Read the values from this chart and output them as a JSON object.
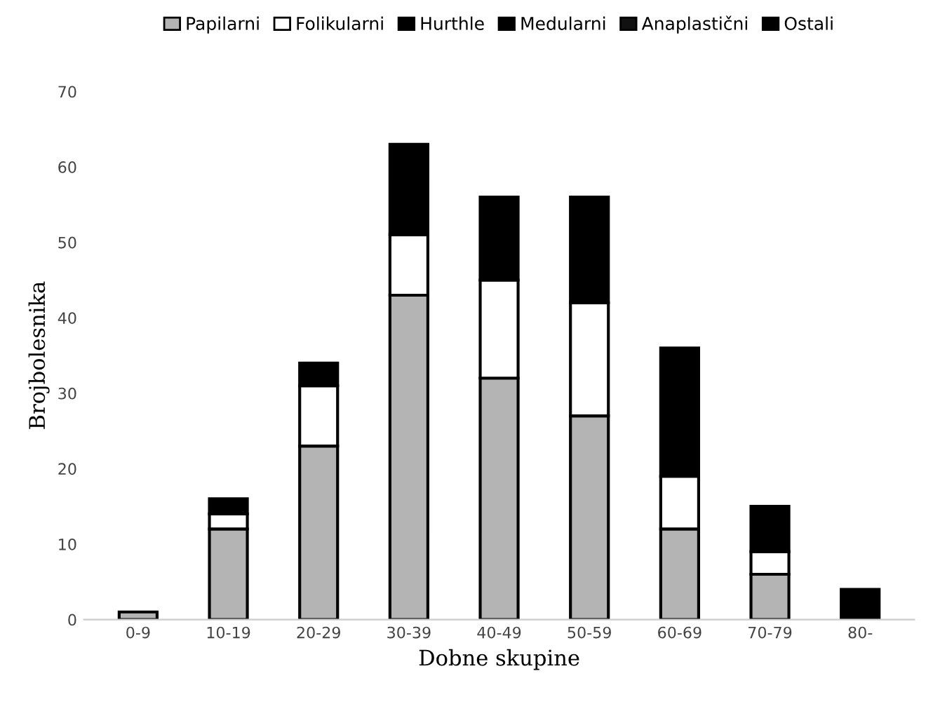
{
  "chart_data": {
    "type": "bar",
    "stacked": true,
    "xlabel": "Dobne skupine",
    "ylabel": "Brojbolesnika",
    "categories": [
      "0-9",
      "10-19",
      "20-29",
      "30-39",
      "40-49",
      "50-59",
      "60-69",
      "70-79",
      "80-"
    ],
    "series": [
      {
        "name": "Papilarni",
        "color": "#b4b4b4",
        "values": [
          1,
          12,
          23,
          43,
          32,
          27,
          12,
          6,
          0
        ]
      },
      {
        "name": "Folikularni",
        "color": "#ffffff",
        "values": [
          0,
          2,
          8,
          8,
          13,
          15,
          7,
          3,
          0
        ]
      },
      {
        "name": "Hurthle",
        "color": "#000000",
        "values": [
          null,
          null,
          null,
          null,
          null,
          null,
          null,
          null,
          null
        ]
      },
      {
        "name": "Medularni",
        "color": "#000000",
        "values": [
          null,
          null,
          null,
          null,
          null,
          null,
          null,
          null,
          null
        ]
      },
      {
        "name": "Anaplastični",
        "color": "#111111",
        "values": [
          null,
          null,
          null,
          null,
          null,
          null,
          null,
          null,
          null
        ]
      },
      {
        "name": "Ostali",
        "color": "#000000",
        "values": [
          0,
          2,
          3,
          12,
          11,
          14,
          17,
          6,
          4
        ]
      }
    ],
    "ylim": [
      0,
      70
    ],
    "yticks": [
      0,
      10,
      20,
      30,
      40,
      50,
      60,
      70
    ],
    "grid": false,
    "legend": "top"
  }
}
